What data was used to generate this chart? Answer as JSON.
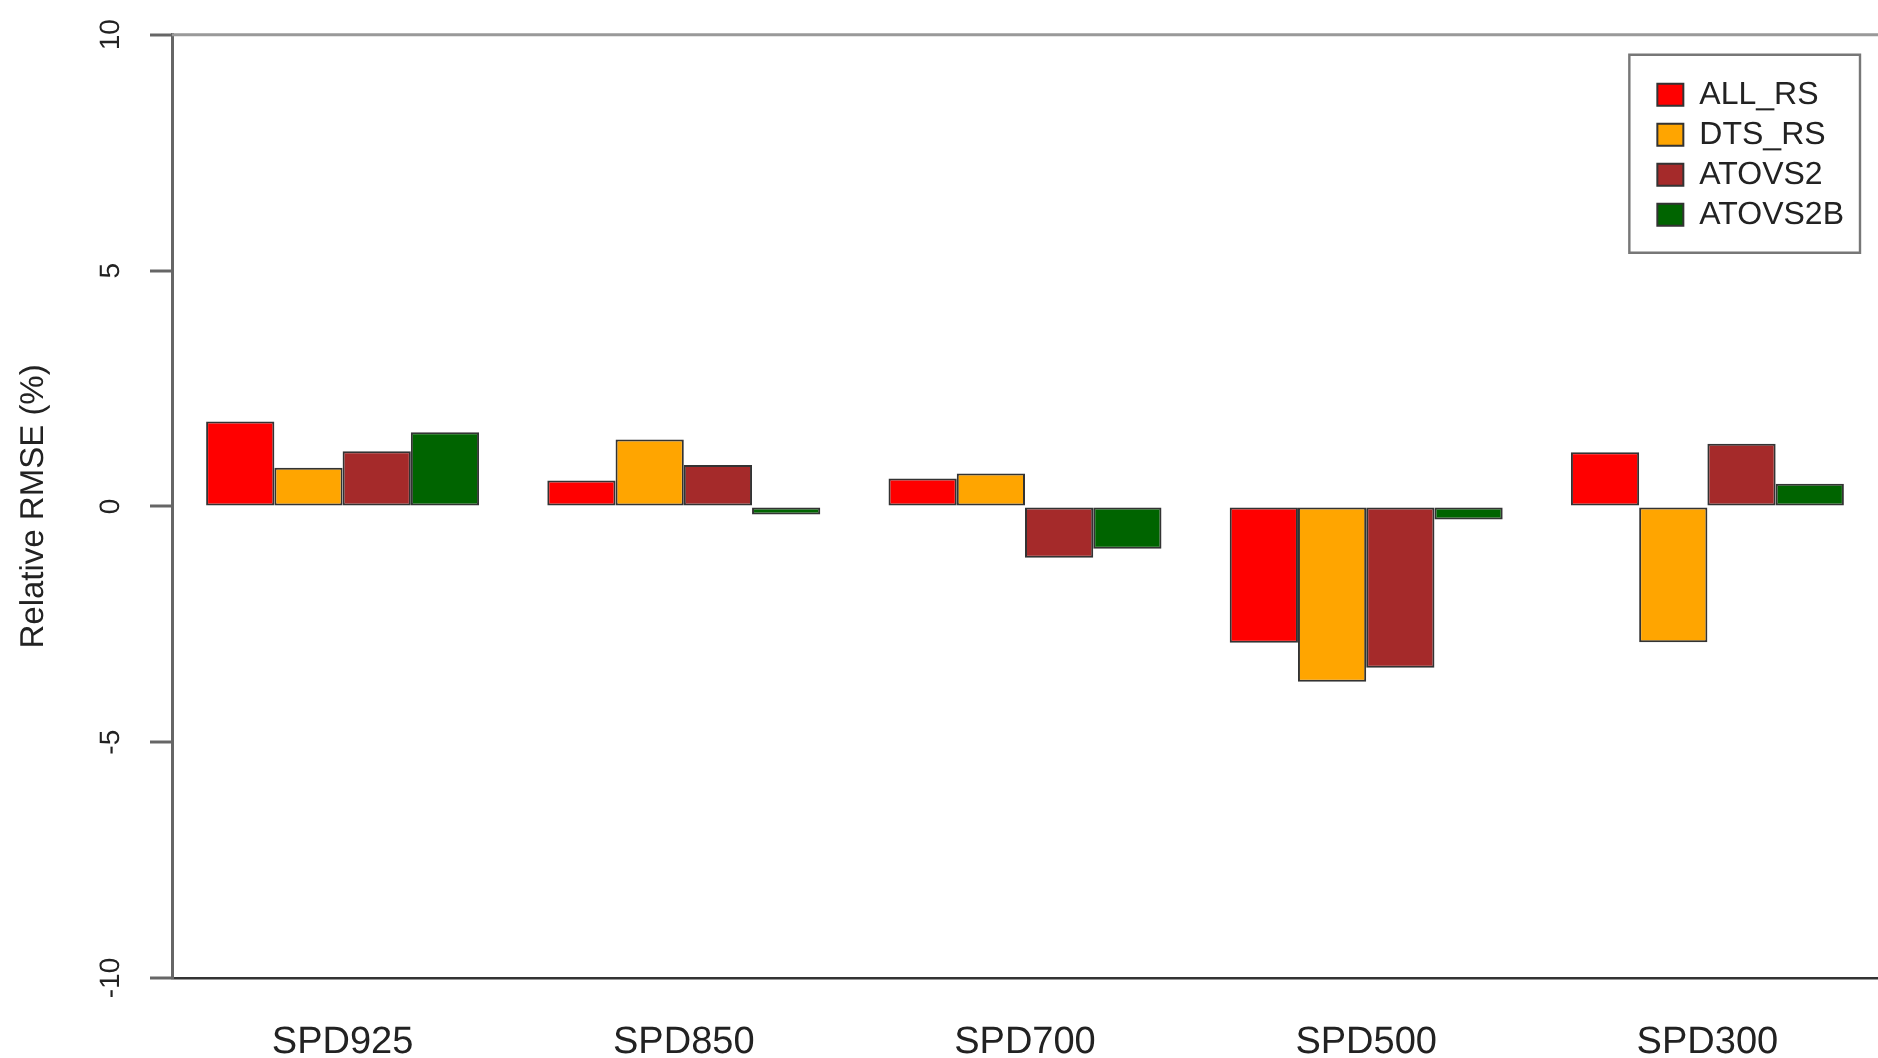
{
  "chart_data": {
    "type": "bar",
    "ylabel": "Relative RMSE (%)",
    "categories": [
      "SPD925",
      "SPD850",
      "SPD700",
      "SPD500",
      "SPD300"
    ],
    "series": [
      {
        "name": "ALL_RS",
        "color": "#ff0000",
        "values": [
          1.8,
          0.55,
          0.59,
          -2.89,
          1.15
        ]
      },
      {
        "name": "DTS_RS",
        "color": "#ffa500",
        "values": [
          0.82,
          1.42,
          0.7,
          -3.72,
          -2.88
        ]
      },
      {
        "name": "ATOVS2",
        "color": "#a52a2a",
        "values": [
          1.17,
          0.88,
          -1.09,
          -3.42,
          1.33
        ]
      },
      {
        "name": "ATOVS2B",
        "color": "#006400",
        "values": [
          1.57,
          -0.17,
          -0.9,
          -0.28,
          0.48
        ]
      }
    ],
    "ylim": [
      -10,
      10
    ],
    "yticks": [
      -10,
      -5,
      0,
      5,
      10
    ],
    "grid": false,
    "legend": "top right"
  }
}
